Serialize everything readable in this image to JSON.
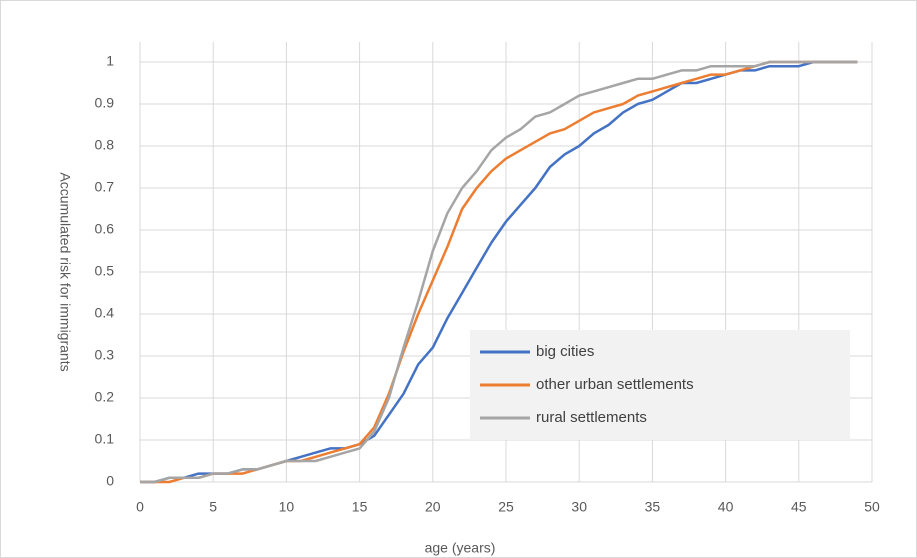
{
  "chart_data": {
    "type": "line",
    "xlabel": "age (years)",
    "ylabel": "Accumulated risk for immigrants",
    "x": [
      0,
      1,
      2,
      3,
      4,
      5,
      6,
      7,
      8,
      9,
      10,
      11,
      12,
      13,
      14,
      15,
      16,
      17,
      18,
      19,
      20,
      21,
      22,
      23,
      24,
      25,
      26,
      27,
      28,
      29,
      30,
      31,
      32,
      33,
      34,
      35,
      36,
      37,
      38,
      39,
      40,
      41,
      42,
      43,
      44,
      45,
      46,
      47,
      48,
      49
    ],
    "series": [
      {
        "name": "big cities",
        "color": "#4472c4",
        "values": [
          0,
          0,
          0.01,
          0.01,
          0.02,
          0.02,
          0.02,
          0.03,
          0.03,
          0.04,
          0.05,
          0.06,
          0.07,
          0.08,
          0.08,
          0.09,
          0.11,
          0.16,
          0.21,
          0.28,
          0.32,
          0.39,
          0.45,
          0.51,
          0.57,
          0.62,
          0.66,
          0.7,
          0.75,
          0.78,
          0.8,
          0.83,
          0.85,
          0.88,
          0.9,
          0.91,
          0.93,
          0.95,
          0.95,
          0.96,
          0.97,
          0.98,
          0.98,
          0.99,
          0.99,
          0.99,
          1,
          1,
          1,
          1
        ]
      },
      {
        "name": "other urban settlements",
        "color": "#ed7d31",
        "values": [
          0,
          0,
          0,
          0.01,
          0.01,
          0.02,
          0.02,
          0.02,
          0.03,
          0.04,
          0.05,
          0.05,
          0.06,
          0.07,
          0.08,
          0.09,
          0.13,
          0.21,
          0.31,
          0.4,
          0.48,
          0.56,
          0.65,
          0.7,
          0.74,
          0.77,
          0.79,
          0.81,
          0.83,
          0.84,
          0.86,
          0.88,
          0.89,
          0.9,
          0.92,
          0.93,
          0.94,
          0.95,
          0.96,
          0.97,
          0.97,
          0.98,
          0.99,
          1,
          1,
          1,
          1,
          1,
          1,
          1
        ]
      },
      {
        "name": "rural settlements",
        "color": "#a5a5a5",
        "values": [
          0,
          0,
          0.01,
          0.01,
          0.01,
          0.02,
          0.02,
          0.03,
          0.03,
          0.04,
          0.05,
          0.05,
          0.05,
          0.06,
          0.07,
          0.08,
          0.12,
          0.2,
          0.32,
          0.43,
          0.55,
          0.64,
          0.7,
          0.74,
          0.79,
          0.82,
          0.84,
          0.87,
          0.88,
          0.9,
          0.92,
          0.93,
          0.94,
          0.95,
          0.96,
          0.96,
          0.97,
          0.98,
          0.98,
          0.99,
          0.99,
          0.99,
          0.99,
          1,
          1,
          1,
          1,
          1,
          1,
          1
        ]
      }
    ],
    "xlim": [
      0,
      50
    ],
    "xticks": [
      0,
      5,
      10,
      15,
      20,
      25,
      30,
      35,
      40,
      45,
      50
    ],
    "ylim": [
      0,
      1
    ],
    "yticks": [
      0,
      0.1,
      0.2,
      0.3,
      0.4,
      0.5,
      0.6,
      0.7,
      0.8,
      0.9,
      1
    ],
    "grid": true,
    "legend": "lower right"
  }
}
